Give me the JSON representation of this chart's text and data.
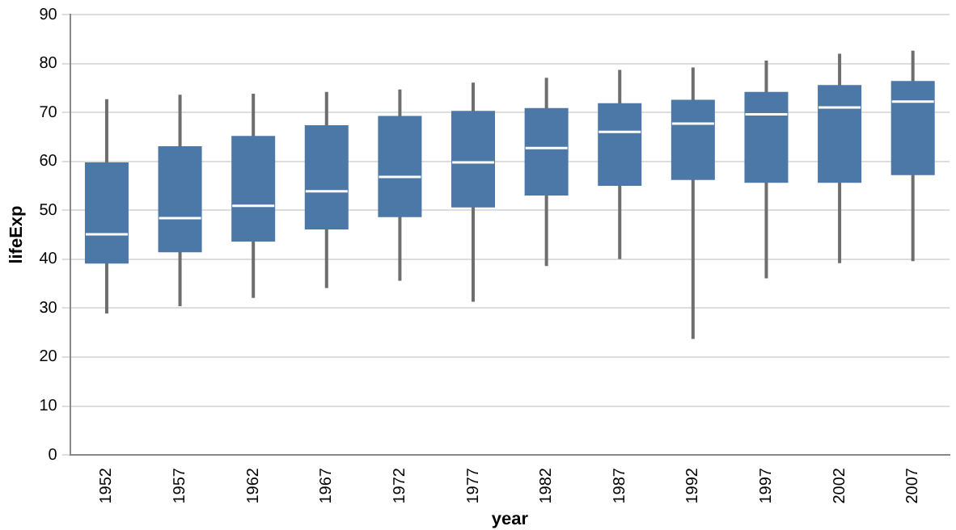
{
  "chart_data": {
    "type": "box",
    "xlabel": "year",
    "ylabel": "lifeExp",
    "categories": [
      "1952",
      "1957",
      "1962",
      "1967",
      "1972",
      "1977",
      "1982",
      "1987",
      "1992",
      "1997",
      "2002",
      "2007"
    ],
    "color": "#4c78a8",
    "boxes": [
      {
        "low": 28.9,
        "q1": 39.1,
        "median": 45.1,
        "q3": 59.8,
        "high": 72.7
      },
      {
        "low": 30.4,
        "q1": 41.4,
        "median": 48.4,
        "q3": 63.1,
        "high": 73.6
      },
      {
        "low": 32.1,
        "q1": 43.6,
        "median": 50.9,
        "q3": 65.2,
        "high": 73.8
      },
      {
        "low": 34.1,
        "q1": 46.1,
        "median": 53.9,
        "q3": 67.4,
        "high": 74.2
      },
      {
        "low": 35.6,
        "q1": 48.6,
        "median": 56.8,
        "q3": 69.3,
        "high": 74.7
      },
      {
        "low": 31.3,
        "q1": 50.6,
        "median": 59.8,
        "q3": 70.3,
        "high": 76.1
      },
      {
        "low": 38.6,
        "q1": 53,
        "median": 62.7,
        "q3": 70.9,
        "high": 77.1
      },
      {
        "low": 40,
        "q1": 55,
        "median": 66,
        "q3": 71.9,
        "high": 78.7
      },
      {
        "low": 23.7,
        "q1": 56.2,
        "median": 67.7,
        "q3": 72.6,
        "high": 79.2
      },
      {
        "low": 36.1,
        "q1": 55.6,
        "median": 69.6,
        "q3": 74.2,
        "high": 80.6
      },
      {
        "low": 39.2,
        "q1": 55.6,
        "median": 71,
        "q3": 75.6,
        "high": 82
      },
      {
        "low": 39.6,
        "q1": 57.2,
        "median": 72.2,
        "q3": 76.4,
        "high": 82.6
      }
    ],
    "ylim": [
      0,
      90
    ],
    "yticks": [
      0,
      10,
      20,
      30,
      40,
      50,
      60,
      70,
      80,
      90
    ],
    "grid": "y"
  }
}
